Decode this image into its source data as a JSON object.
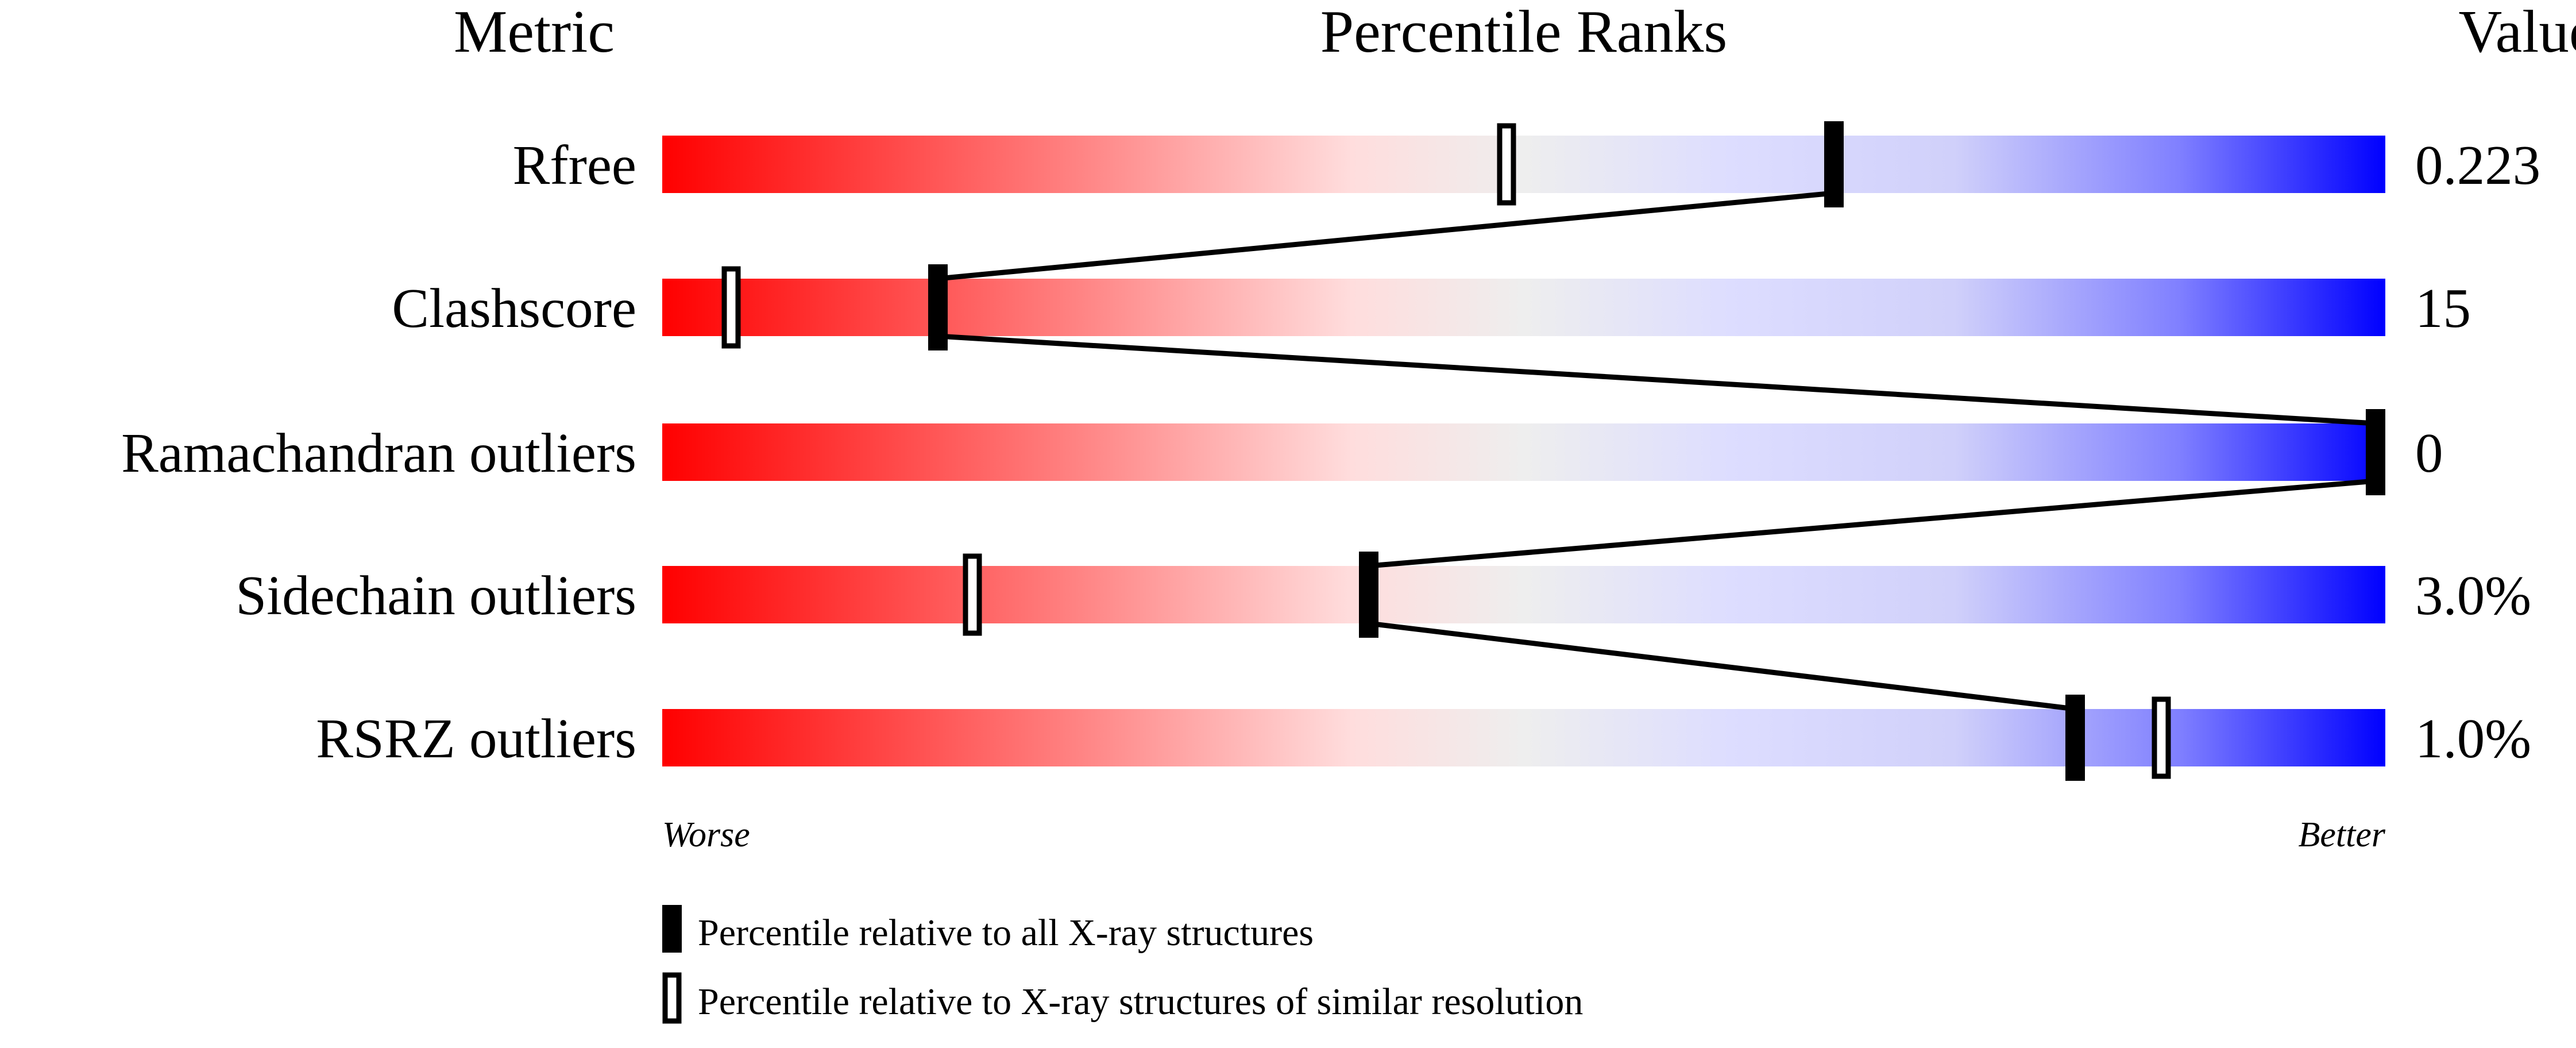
{
  "chart_data": {
    "type": "percentile-slider",
    "headers": {
      "metric": "Metric",
      "ranks": "Percentile Ranks",
      "value": "Value"
    },
    "axis": {
      "worse": "Worse",
      "better": "Better",
      "range": [
        0,
        100
      ]
    },
    "gradient_colors": [
      "#ff0000",
      "#ffdddd",
      "#eeeeee",
      "#ddddff",
      "#0000ff"
    ],
    "metrics": [
      {
        "name": "Rfree",
        "value": "0.223",
        "percentile_all": 68,
        "percentile_similar": 49
      },
      {
        "name": "Clashscore",
        "value": "15",
        "percentile_all": 16,
        "percentile_similar": 4
      },
      {
        "name": "Ramachandran outliers",
        "value": "0",
        "percentile_all": 100,
        "percentile_similar": 100
      },
      {
        "name": "Sidechain outliers",
        "value": "3.0%",
        "percentile_all": 41,
        "percentile_similar": 18
      },
      {
        "name": "RSRZ outliers",
        "value": "1.0%",
        "percentile_all": 82,
        "percentile_similar": 87
      }
    ],
    "legend": {
      "all": "Percentile relative to all X-ray structures",
      "similar": "Percentile relative to X-ray structures of similar resolution"
    }
  }
}
